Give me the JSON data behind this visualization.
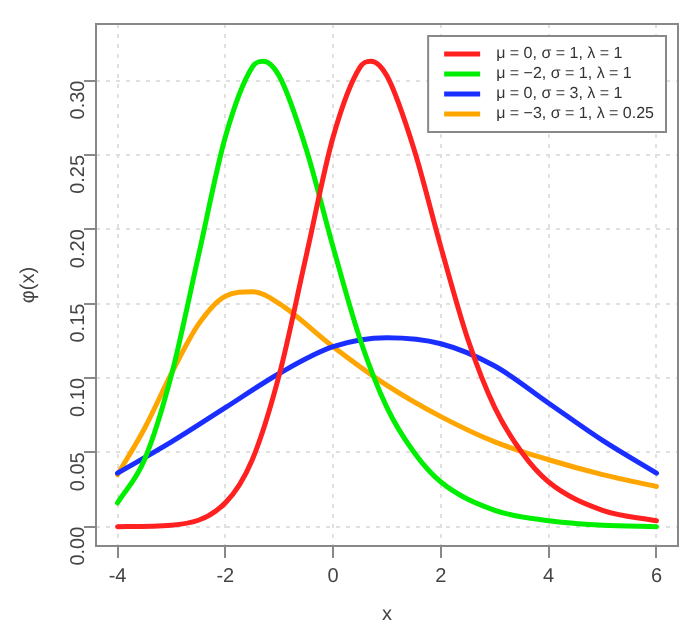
{
  "chart_data": {
    "type": "line",
    "xlabel": "x",
    "ylabel": "φ(x)",
    "xlim": [
      -4.4,
      6.4
    ],
    "xticks": [
      -4,
      -2,
      0,
      2,
      4,
      6
    ],
    "ylim": [
      -0.013,
      0.338
    ],
    "yticks": [
      {
        "value": 0,
        "label": "0.00"
      },
      {
        "value": 0.05,
        "label": "0.05"
      },
      {
        "value": 0.1,
        "label": "0.10"
      },
      {
        "value": 0.15,
        "label": "0.15"
      },
      {
        "value": 0.2,
        "label": "0.20"
      },
      {
        "value": 0.25,
        "label": "0.25"
      },
      {
        "value": 0.3,
        "label": "0.30"
      }
    ],
    "grid": true,
    "legend": "top right",
    "marker": "none",
    "line_style": "solid",
    "series": [
      {
        "name": "μ = 0, σ = 1, λ = 1",
        "color": "#ff2020",
        "x": [
          -4,
          -3,
          -2,
          -1.5,
          -1,
          -0.5,
          0,
          0.5,
          0.7,
          1,
          1.5,
          2,
          2.5,
          3,
          3.5,
          4,
          5,
          6
        ],
        "values": [
          0,
          0.001,
          0.016,
          0.045,
          0.102,
          0.182,
          0.262,
          0.309,
          0.313,
          0.303,
          0.254,
          0.188,
          0.126,
          0.08,
          0.05,
          0.03,
          0.011,
          0.004
        ]
      },
      {
        "name": "μ = −2, σ = 1, λ = 1",
        "color": "#00ee00",
        "x": [
          -4,
          -3.5,
          -3,
          -2.5,
          -2,
          -1.5,
          -1.3,
          -1,
          -0.5,
          0,
          0.5,
          1,
          1.5,
          2,
          3,
          4,
          5,
          6
        ],
        "values": [
          0.016,
          0.045,
          0.102,
          0.182,
          0.262,
          0.309,
          0.313,
          0.303,
          0.254,
          0.188,
          0.126,
          0.08,
          0.05,
          0.03,
          0.011,
          0.004,
          0.001,
          0
        ]
      },
      {
        "name": "μ = 0, σ = 3, λ = 1",
        "color": "#1a2eff",
        "x": [
          -4,
          -3,
          -2,
          -1,
          0,
          1,
          2,
          3,
          4,
          5,
          6
        ],
        "values": [
          0.036,
          0.057,
          0.08,
          0.103,
          0.121,
          0.127,
          0.123,
          0.108,
          0.083,
          0.058,
          0.036
        ]
      },
      {
        "name": "μ = −3, σ = 1, λ = 0.25",
        "color": "#ffa500",
        "x": [
          -4,
          -3.5,
          -3,
          -2.5,
          -2,
          -1.5,
          -1,
          0,
          1,
          2,
          3,
          4,
          5,
          6
        ],
        "values": [
          0.035,
          0.066,
          0.103,
          0.136,
          0.155,
          0.158,
          0.15,
          0.121,
          0.095,
          0.074,
          0.057,
          0.045,
          0.035,
          0.027
        ]
      }
    ]
  }
}
